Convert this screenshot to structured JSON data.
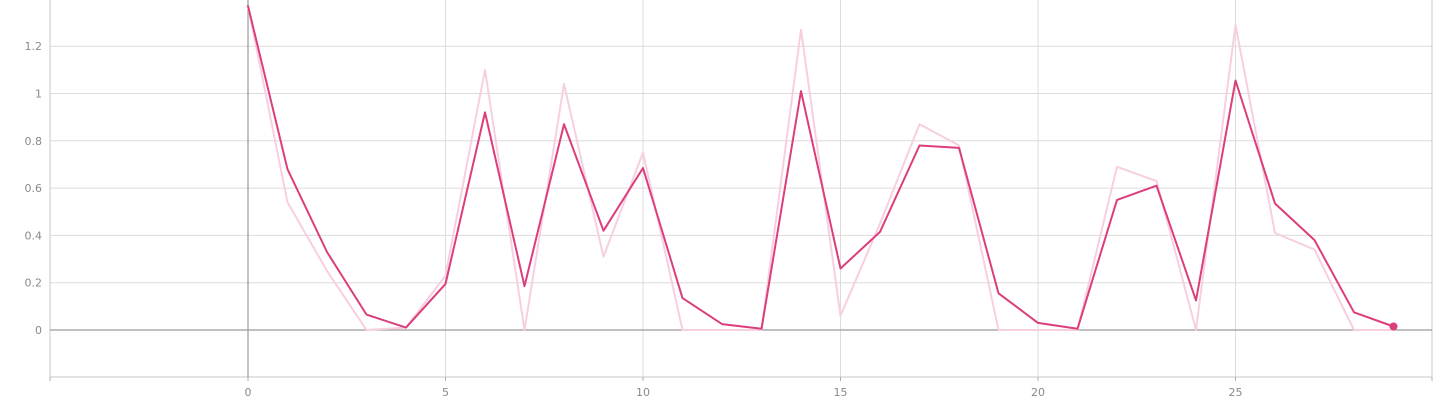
{
  "chart_data": {
    "type": "line",
    "x": [
      0,
      1,
      2,
      3,
      4,
      5,
      6,
      7,
      8,
      9,
      10,
      11,
      12,
      13,
      14,
      15,
      16,
      17,
      18,
      19,
      20,
      21,
      22,
      23,
      24,
      25,
      26,
      27,
      28,
      29
    ],
    "series": [
      {
        "values": [
          1.37,
          0.54,
          0.25,
          0.0,
          0.01,
          0.23,
          1.1,
          0.0,
          1.04,
          0.31,
          0.75,
          0.0,
          0.0,
          0.0,
          1.27,
          0.06,
          0.45,
          0.87,
          0.78,
          0.0,
          0.0,
          0.0,
          0.69,
          0.63,
          0.0,
          1.29,
          0.41,
          0.34,
          0.0,
          0.0
        ],
        "color": "#f7cfe0",
        "style": "raw"
      },
      {
        "values": [
          1.37,
          0.68,
          0.33,
          0.065,
          0.01,
          0.195,
          0.92,
          0.185,
          0.87,
          0.42,
          0.685,
          0.135,
          0.025,
          0.005,
          1.01,
          0.26,
          0.415,
          0.78,
          0.77,
          0.155,
          0.03,
          0.005,
          0.55,
          0.61,
          0.125,
          1.055,
          0.535,
          0.38,
          0.075,
          0.015
        ],
        "color": "#dc3d7c",
        "style": "smoothed"
      }
    ],
    "title": "",
    "xlabel": "",
    "ylabel": "",
    "xlim": [
      -5,
      30
    ],
    "ylim": [
      -0.2,
      1.4
    ],
    "xticks": [
      0,
      5,
      10,
      15,
      20,
      25
    ],
    "xtick_labels": [
      "0",
      "5",
      "10",
      "15",
      "20",
      "25"
    ],
    "yticks": [
      0,
      0.2,
      0.4,
      0.6,
      0.8,
      1,
      1.2
    ],
    "ytick_labels": [
      "0",
      "0.2",
      "0.4",
      "0.6",
      "0.8",
      "1",
      "1.2"
    ],
    "grid": true,
    "legend": "none",
    "last_point_marker": true
  }
}
